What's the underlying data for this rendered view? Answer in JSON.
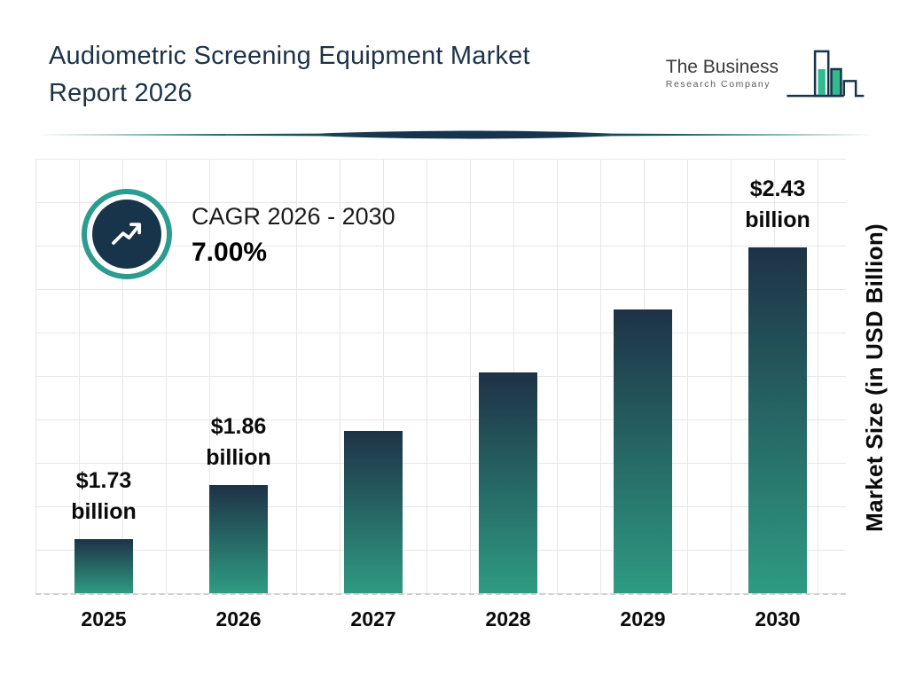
{
  "header": {
    "title_line1": "Audiometric Screening Equipment Market",
    "title_line2": "Report 2026",
    "logo": {
      "line1": "The Business",
      "line2": "Research Company"
    }
  },
  "cagr": {
    "label": "CAGR 2026 - 2030",
    "value": "7.00%"
  },
  "chart_data": {
    "type": "bar",
    "title": "Audiometric Screening Equipment Market Report 2026",
    "categories": [
      "2025",
      "2026",
      "2027",
      "2028",
      "2029",
      "2030"
    ],
    "values": [
      1.73,
      1.86,
      1.99,
      2.13,
      2.28,
      2.43
    ],
    "value_labels": [
      {
        "amount": "$1.73",
        "unit": "billion"
      },
      {
        "amount": "$1.86",
        "unit": "billion"
      },
      null,
      null,
      null,
      {
        "amount": "$2.43",
        "unit": "billion"
      }
    ],
    "xlabel": "",
    "ylabel": "Market Size (in USD Billion)",
    "ylim": [
      1.6,
      2.5
    ],
    "grid": true,
    "legend": false,
    "bar_gradient": [
      "#1e3247",
      "#2e9b82"
    ]
  },
  "colors": {
    "accent_teal": "#2a9d8f",
    "navy": "#17344b",
    "logo_green": "#2fbd8f"
  }
}
